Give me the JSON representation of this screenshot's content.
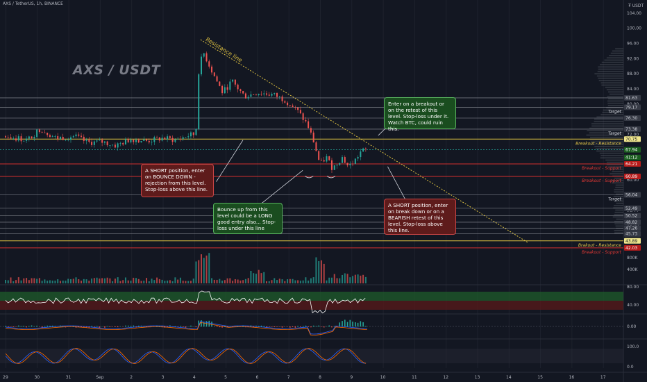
{
  "header": {
    "symbol_line": "AXS / TetherUS, 1h, BINANCE"
  },
  "watermark": "AXS / USDT",
  "currency_label": "₮ USDT",
  "colors": {
    "bg": "#131722",
    "up": "#26a69a",
    "down": "#ef5350",
    "line": "#d1d4dc",
    "yellow": "#e0c341",
    "red": "#c62828",
    "green": "#2e7d32",
    "grid": "#2a2e39"
  },
  "chart_data": {
    "type": "candlestick",
    "title": "AXS / USDT",
    "price_axis": {
      "min": 40,
      "max": 106,
      "ticks": [
        104,
        100,
        96,
        92,
        88,
        84,
        80,
        76,
        72,
        68,
        64,
        60,
        56,
        52,
        48,
        44,
        40
      ]
    },
    "time_axis": {
      "labels": [
        "29",
        "30",
        "31",
        "Sep",
        "2",
        "3",
        "4",
        "5",
        "6",
        "7",
        "8",
        "9",
        "10",
        "11",
        "12",
        "13",
        "14",
        "15",
        "16",
        "17"
      ]
    },
    "price_path": [
      {
        "t": 0,
        "p": 71.5
      },
      {
        "t": 0.7,
        "p": 70.5
      },
      {
        "t": 1.1,
        "p": 73.5
      },
      {
        "t": 1.6,
        "p": 71.0
      },
      {
        "t": 2.2,
        "p": 71.5
      },
      {
        "t": 2.6,
        "p": 69.8
      },
      {
        "t": 3.1,
        "p": 70.0
      },
      {
        "t": 3.5,
        "p": 69.0
      },
      {
        "t": 4.0,
        "p": 70.8
      },
      {
        "t": 4.5,
        "p": 70.2
      },
      {
        "t": 5.0,
        "p": 71.0
      },
      {
        "t": 5.4,
        "p": 70.5
      },
      {
        "t": 5.85,
        "p": 71.8
      },
      {
        "t": 6.05,
        "p": 72.0
      },
      {
        "t": 6.15,
        "p": 90.0
      },
      {
        "t": 6.3,
        "p": 93.5
      },
      {
        "t": 6.6,
        "p": 88.0
      },
      {
        "t": 6.9,
        "p": 83.0
      },
      {
        "t": 7.2,
        "p": 86.0
      },
      {
        "t": 7.6,
        "p": 82.0
      },
      {
        "t": 8.0,
        "p": 83.0
      },
      {
        "t": 8.5,
        "p": 82.5
      },
      {
        "t": 8.9,
        "p": 81.0
      },
      {
        "t": 9.3,
        "p": 78.0
      },
      {
        "t": 9.6,
        "p": 74.5
      },
      {
        "t": 9.8,
        "p": 70.0
      },
      {
        "t": 10.0,
        "p": 64.0
      },
      {
        "t": 10.2,
        "p": 66.0
      },
      {
        "t": 10.4,
        "p": 63.0
      },
      {
        "t": 10.7,
        "p": 66.0
      },
      {
        "t": 10.9,
        "p": 63.5
      },
      {
        "t": 11.1,
        "p": 65.0
      },
      {
        "t": 11.3,
        "p": 67.5
      },
      {
        "t": 11.5,
        "p": 67.94
      }
    ],
    "horizontal_levels": [
      {
        "price": 81.63,
        "color": "gray",
        "label": ""
      },
      {
        "price": 79.17,
        "color": "gray",
        "label": "Target"
      },
      {
        "price": 76.3,
        "color": "gray",
        "label": ""
      },
      {
        "price": 73.38,
        "color": "gray",
        "label": "Target"
      },
      {
        "price": 70.75,
        "color": "yellow",
        "label": "Breakout - Resistance"
      },
      {
        "price": 64.21,
        "color": "red",
        "label": "Breakout - Support"
      },
      {
        "price": 60.89,
        "color": "red",
        "label": "Breakout - Support"
      },
      {
        "price": 56.04,
        "color": "gray",
        "label": "Target"
      },
      {
        "price": 52.49,
        "color": "gray",
        "label": ""
      },
      {
        "price": 50.52,
        "color": "gray",
        "label": ""
      },
      {
        "price": 48.82,
        "color": "gray",
        "label": ""
      },
      {
        "price": 47.26,
        "color": "gray",
        "label": ""
      },
      {
        "price": 45.73,
        "color": "gray",
        "label": ""
      },
      {
        "price": 43.89,
        "color": "yellow",
        "label": "Brakout - Resistance"
      },
      {
        "price": 42.03,
        "color": "red",
        "label": "Breakout - Support"
      }
    ],
    "price_badges": [
      {
        "price": 81.63,
        "text": "81.63",
        "bg": "#363a45",
        "fg": "#d1d4dc"
      },
      {
        "price": 79.17,
        "text": "79.17",
        "bg": "#363a45",
        "fg": "#d1d4dc"
      },
      {
        "price": 76.3,
        "text": "76.30",
        "bg": "#363a45",
        "fg": "#d1d4dc"
      },
      {
        "price": 73.38,
        "text": "73.38",
        "bg": "#363a45",
        "fg": "#d1d4dc"
      },
      {
        "price": 70.75,
        "text": "70.75",
        "bg": "#f0e68c",
        "fg": "#131722"
      },
      {
        "price": 67.94,
        "text": "67.94",
        "bg": "#1b5e20",
        "fg": "#ffffff"
      },
      {
        "price": 65.9,
        "text": "41:12",
        "bg": "#1b5e20",
        "fg": "#ffffff"
      },
      {
        "price": 64.21,
        "text": "64.21",
        "bg": "#b71c1c",
        "fg": "#ffffff"
      },
      {
        "price": 60.89,
        "text": "60.89",
        "bg": "#b71c1c",
        "fg": "#ffffff"
      },
      {
        "price": 56.04,
        "text": "56.04",
        "bg": "#363a45",
        "fg": "#d1d4dc"
      },
      {
        "price": 52.49,
        "text": "52.49",
        "bg": "#363a45",
        "fg": "#d1d4dc"
      },
      {
        "price": 50.52,
        "text": "50.52",
        "bg": "#363a45",
        "fg": "#d1d4dc"
      },
      {
        "price": 48.82,
        "text": "48.82",
        "bg": "#363a45",
        "fg": "#d1d4dc"
      },
      {
        "price": 47.26,
        "text": "47.26",
        "bg": "#363a45",
        "fg": "#d1d4dc"
      },
      {
        "price": 45.73,
        "text": "45.73",
        "bg": "#363a45",
        "fg": "#d1d4dc"
      },
      {
        "price": 43.89,
        "text": "43.89",
        "bg": "#f0e68c",
        "fg": "#131722"
      },
      {
        "price": 42.03,
        "text": "42.03",
        "bg": "#b71c1c",
        "fg": "#ffffff"
      }
    ],
    "resistance_line": {
      "label": "Resistance line",
      "from": {
        "t": 6.2,
        "p": 97
      },
      "to": {
        "t": 16.6,
        "p": 43.5
      }
    },
    "annotations": [
      {
        "id": "short-bounce",
        "color": "red",
        "text": "A SHORT position, enter on BOUNCE DOWN - rejection from this level. Stop-loss above this line."
      },
      {
        "id": "long-bounce",
        "color": "green",
        "text": "Bounce up from this level could be a LONG good entry also... Stop-loss under this line"
      },
      {
        "id": "breakout-retest",
        "color": "green",
        "text": "Enter on a breakout or on the retest of this level. Stop-loss under it. Watch BTC, could ruin this."
      },
      {
        "id": "short-breakdown",
        "color": "red",
        "text": "A SHORT position, enter on break down or on a BEARISH retest of this level. Stop-loss above this line."
      }
    ],
    "volume_axis": {
      "ticks": [
        "800K",
        "400K"
      ]
    },
    "rsi_axis": {
      "ticks": [
        "80.00",
        "40.00"
      ]
    },
    "macd_axis": {
      "ticks": [
        "0.00"
      ]
    },
    "stoch_axis": {
      "ticks": [
        "100.0",
        "0.0"
      ]
    }
  }
}
